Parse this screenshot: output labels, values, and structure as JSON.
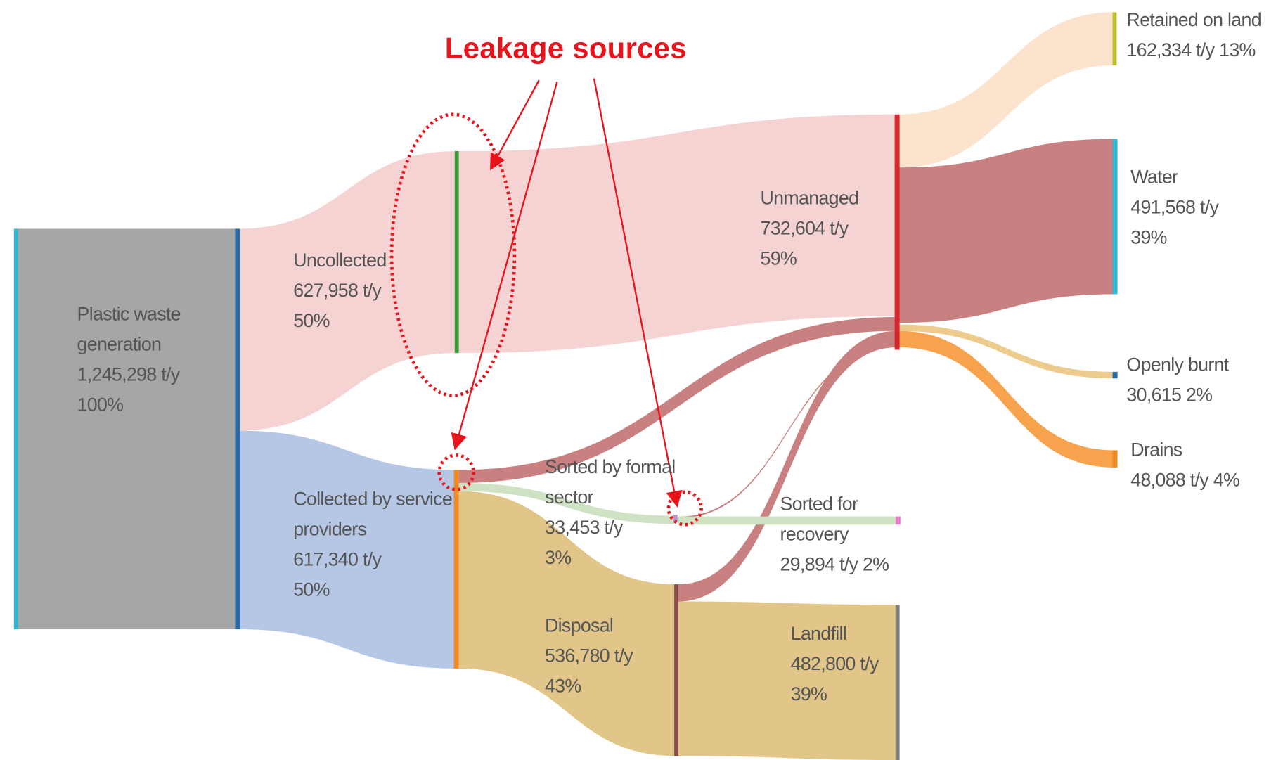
{
  "title": "Leakage sources",
  "nodes": [
    {
      "label": "Plastic waste generation",
      "amount": "1,245,298 t/y",
      "share": "100%"
    },
    {
      "label": "Uncollected",
      "amount": "627,958 t/y",
      "share": "50%"
    },
    {
      "label": "Collected by service providers",
      "amount": "617,340 t/y",
      "share": "50%"
    },
    {
      "label": "Unmanaged",
      "amount": "732,604 t/y",
      "share": "59%"
    },
    {
      "label": "Sorted by formal sector",
      "amount": "33,453 t/y",
      "share": "3%"
    },
    {
      "label": "Disposal",
      "amount": "536,780 t/y",
      "share": "43%"
    },
    {
      "label": "Sorted for recovery",
      "amount": "29,894 t/y",
      "share": "2%"
    },
    {
      "label": "Landfill",
      "amount": "482,800 t/y",
      "share": "39%"
    },
    {
      "label": "Retained on land",
      "amount": "162,334 t/y",
      "share": "13%"
    },
    {
      "label": "Water",
      "amount": "491,568 t/y",
      "share": "39%"
    },
    {
      "label": "Openly burnt",
      "amount": "30,615",
      "share": "2%"
    },
    {
      "label": "Drains",
      "amount": "48,088 t/y",
      "share": "4%"
    }
  ]
}
